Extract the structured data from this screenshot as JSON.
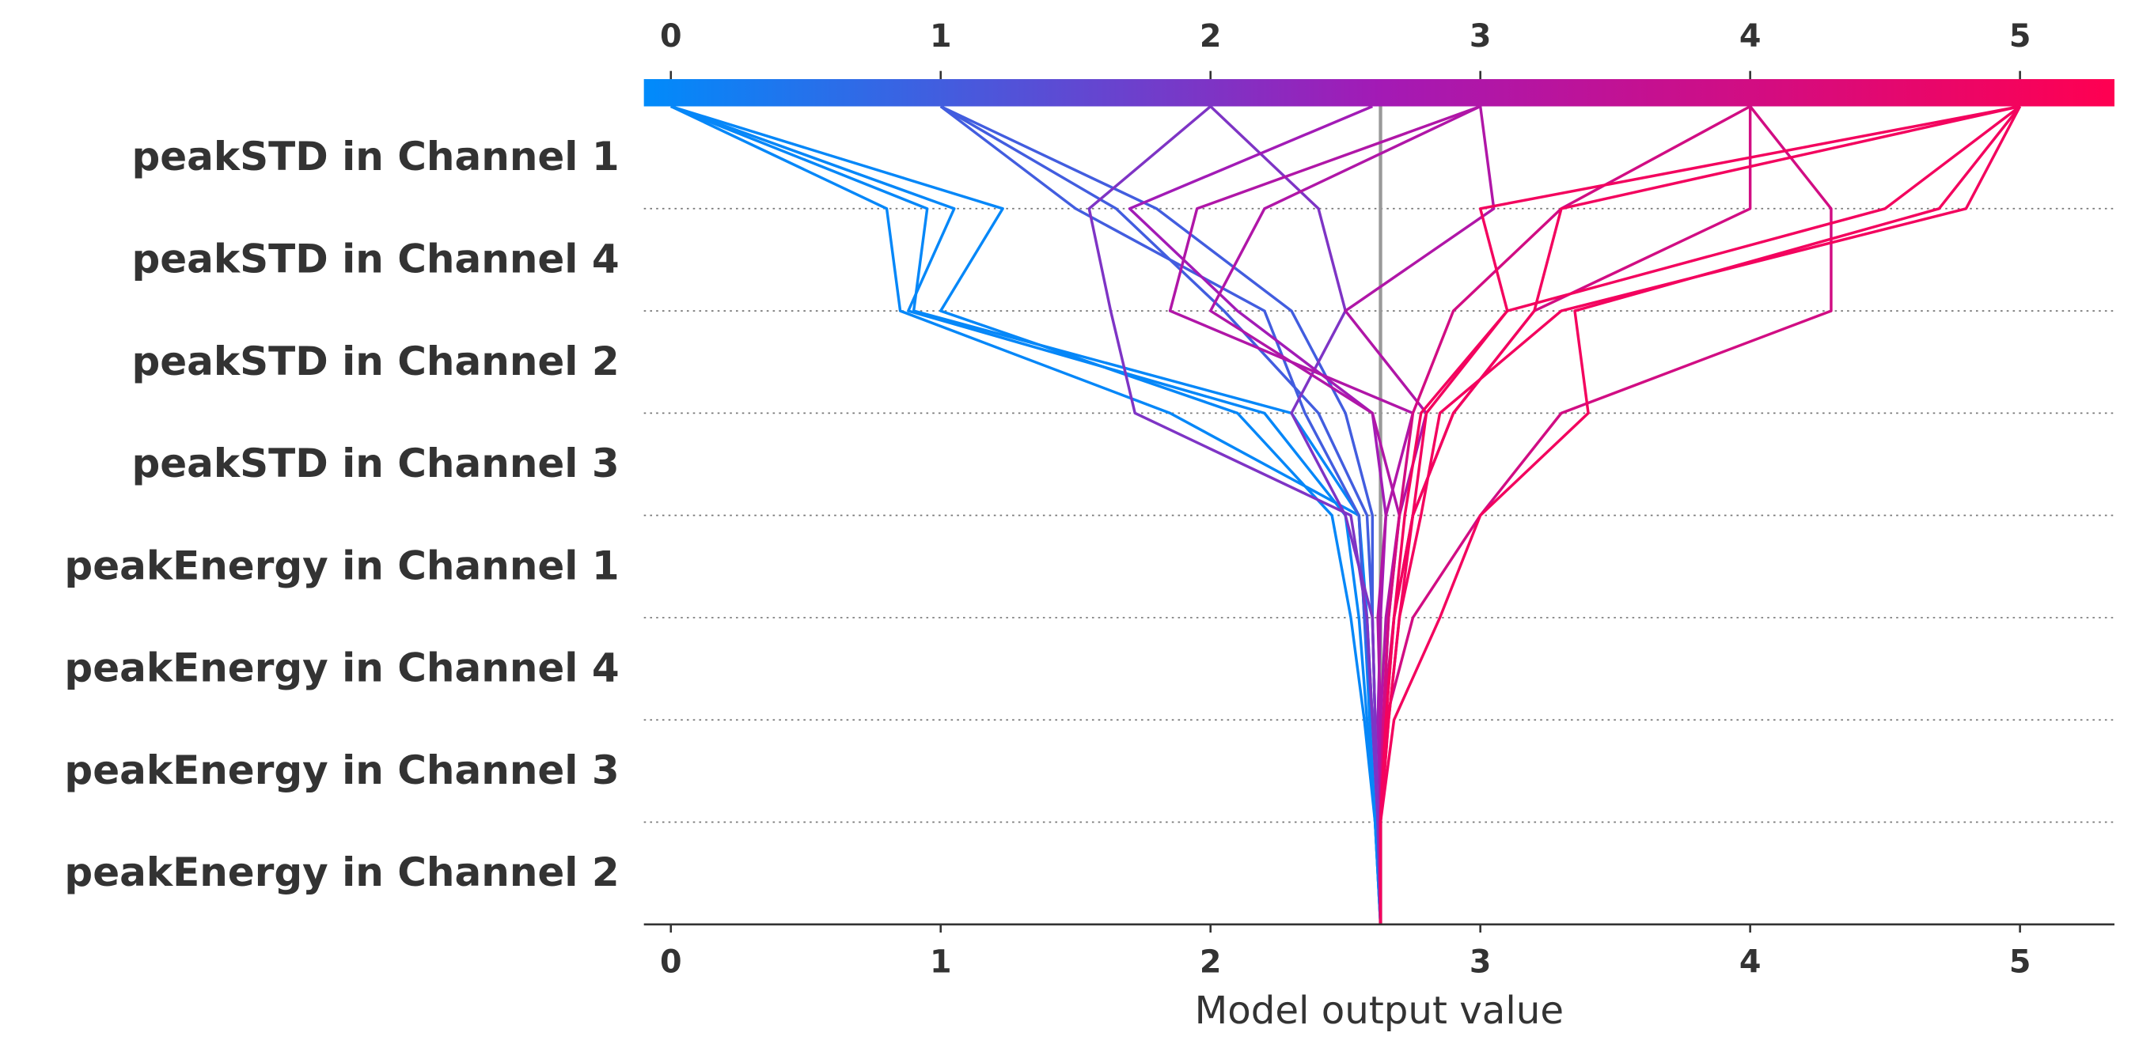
{
  "chart_data": {
    "type": "decision",
    "xlabel": "Model output value",
    "features": [
      "peakSTD in Channel 1",
      "peakSTD in Channel 4",
      "peakSTD in Channel 2",
      "peakSTD in Channel 3",
      "peakEnergy in Channel 1",
      "peakEnergy in Channel 4",
      "peakEnergy in Channel 3",
      "peakEnergy in Channel 2"
    ],
    "xlim": [
      -0.1,
      5.35
    ],
    "xticks": [
      0,
      1,
      2,
      3,
      4,
      5
    ],
    "base_value": 2.63,
    "colormap": [
      "#008bfb",
      "#a31ab5",
      "#ff0051"
    ],
    "series": [
      {
        "values": [
          0,
          1.05,
          0.88,
          2.2,
          2.5,
          2.55,
          2.58,
          2.61
        ]
      },
      {
        "values": [
          0,
          1.23,
          1.0,
          2.1,
          2.45,
          2.52,
          2.57,
          2.61
        ]
      },
      {
        "values": [
          0,
          0.8,
          0.85,
          1.85,
          2.55,
          2.58,
          2.6,
          2.62
        ]
      },
      {
        "values": [
          0,
          0.95,
          0.9,
          2.3,
          2.55,
          2.57,
          2.59,
          2.61
        ]
      },
      {
        "values": [
          1,
          1.5,
          2.2,
          2.35,
          2.55,
          2.57,
          2.6,
          2.62
        ]
      },
      {
        "values": [
          1,
          1.8,
          2.3,
          2.5,
          2.6,
          2.6,
          2.61,
          2.62
        ]
      },
      {
        "values": [
          1,
          1.65,
          2.05,
          2.4,
          2.58,
          2.6,
          2.61,
          2.62
        ]
      },
      {
        "values": [
          2,
          1.55,
          1.63,
          1.72,
          2.52,
          2.58,
          2.6,
          2.62
        ]
      },
      {
        "values": [
          2,
          2.4,
          2.5,
          2.3,
          2.5,
          2.6,
          2.61,
          2.62
        ]
      },
      {
        "values": [
          2.6,
          1.7,
          2.1,
          2.6,
          2.65,
          2.63,
          2.62,
          2.63
        ]
      },
      {
        "values": [
          3,
          1.95,
          1.85,
          2.75,
          2.65,
          2.62,
          2.63,
          2.63
        ]
      },
      {
        "values": [
          3,
          3.05,
          2.5,
          2.8,
          2.7,
          2.65,
          2.63,
          2.63
        ]
      },
      {
        "values": [
          3,
          2.2,
          2.0,
          2.6,
          2.7,
          2.66,
          2.64,
          2.63
        ]
      },
      {
        "values": [
          4,
          3.3,
          2.9,
          2.75,
          2.7,
          2.66,
          2.64,
          2.63
        ]
      },
      {
        "values": [
          4,
          4.0,
          3.2,
          2.9,
          2.75,
          2.68,
          2.64,
          2.63
        ]
      },
      {
        "values": [
          4,
          4.3,
          4.3,
          3.3,
          3.0,
          2.75,
          2.65,
          2.63
        ]
      },
      {
        "values": [
          5,
          4.5,
          3.1,
          2.8,
          2.75,
          2.68,
          2.65,
          2.63
        ]
      },
      {
        "values": [
          5,
          3.3,
          3.2,
          2.9,
          2.75,
          2.7,
          2.66,
          2.63
        ]
      },
      {
        "values": [
          5,
          4.8,
          3.3,
          2.85,
          2.78,
          2.7,
          2.66,
          2.63
        ]
      },
      {
        "values": [
          5,
          3.0,
          3.1,
          2.78,
          2.72,
          2.68,
          2.65,
          2.63
        ]
      },
      {
        "values": [
          5,
          4.7,
          3.35,
          3.4,
          3.0,
          2.85,
          2.68,
          2.63
        ]
      }
    ]
  }
}
